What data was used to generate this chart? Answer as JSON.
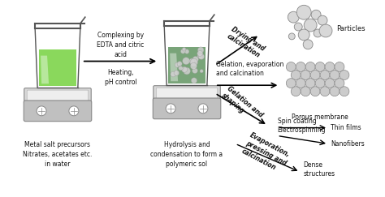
{
  "text_color": "#111111",
  "label1": "Metal salt precursors\nNitrates, acetates etc.\nin water",
  "label2": "Hydrolysis and\ncondensation to form a\npolymeric sol",
  "mid_label_top": "Complexing by\nEDTA and citric\nacid",
  "mid_label_bot": "Heating,\npH control",
  "arrow1_label": "Drying and\ncalcination",
  "arrow2_label": "Gelation, evaporation\nand calcination",
  "arrow3_label": "Gelation and\nshaping",
  "product1": "Particles",
  "product2": "Porous membrane",
  "spincoat": "Spin coating",
  "thinfilm": "Thin films",
  "electrospin": "Electrospinning",
  "nanofibers": "Nanofibers",
  "evap_label": "Evaporation,\npressing and\ncalcination",
  "dense": "Dense\nstructures",
  "liquid1_color": "#7dd44a",
  "liquid2_color": "#6a9a6a",
  "bubble_color": "#cccccc"
}
